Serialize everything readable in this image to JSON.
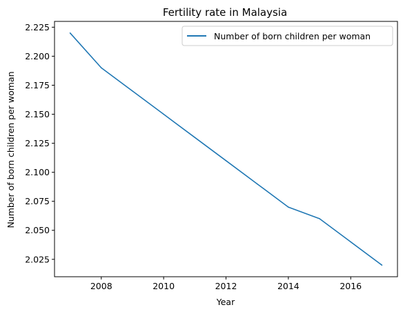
{
  "chart_data": {
    "type": "line",
    "title": "Fertility rate in Malaysia",
    "xlabel": "Year",
    "ylabel": "Number of born children per woman",
    "x": [
      2007,
      2008,
      2009,
      2010,
      2011,
      2012,
      2013,
      2014,
      2015,
      2016,
      2017
    ],
    "series": [
      {
        "name": "Number of born children per woman",
        "values": [
          2.22,
          2.19,
          2.17,
          2.15,
          2.13,
          2.11,
          2.09,
          2.07,
          2.06,
          2.04,
          2.02
        ],
        "color": "#1f77b4"
      }
    ],
    "xlim": [
      2006.5,
      2017.5
    ],
    "ylim": [
      2.01,
      2.23
    ],
    "xticks": [
      "2008",
      "2010",
      "2012",
      "2014",
      "2016"
    ],
    "yticks": [
      "2.025",
      "2.050",
      "2.075",
      "2.100",
      "2.125",
      "2.150",
      "2.175",
      "2.200",
      "2.225"
    ],
    "grid": false,
    "legend_position": "top-right"
  }
}
